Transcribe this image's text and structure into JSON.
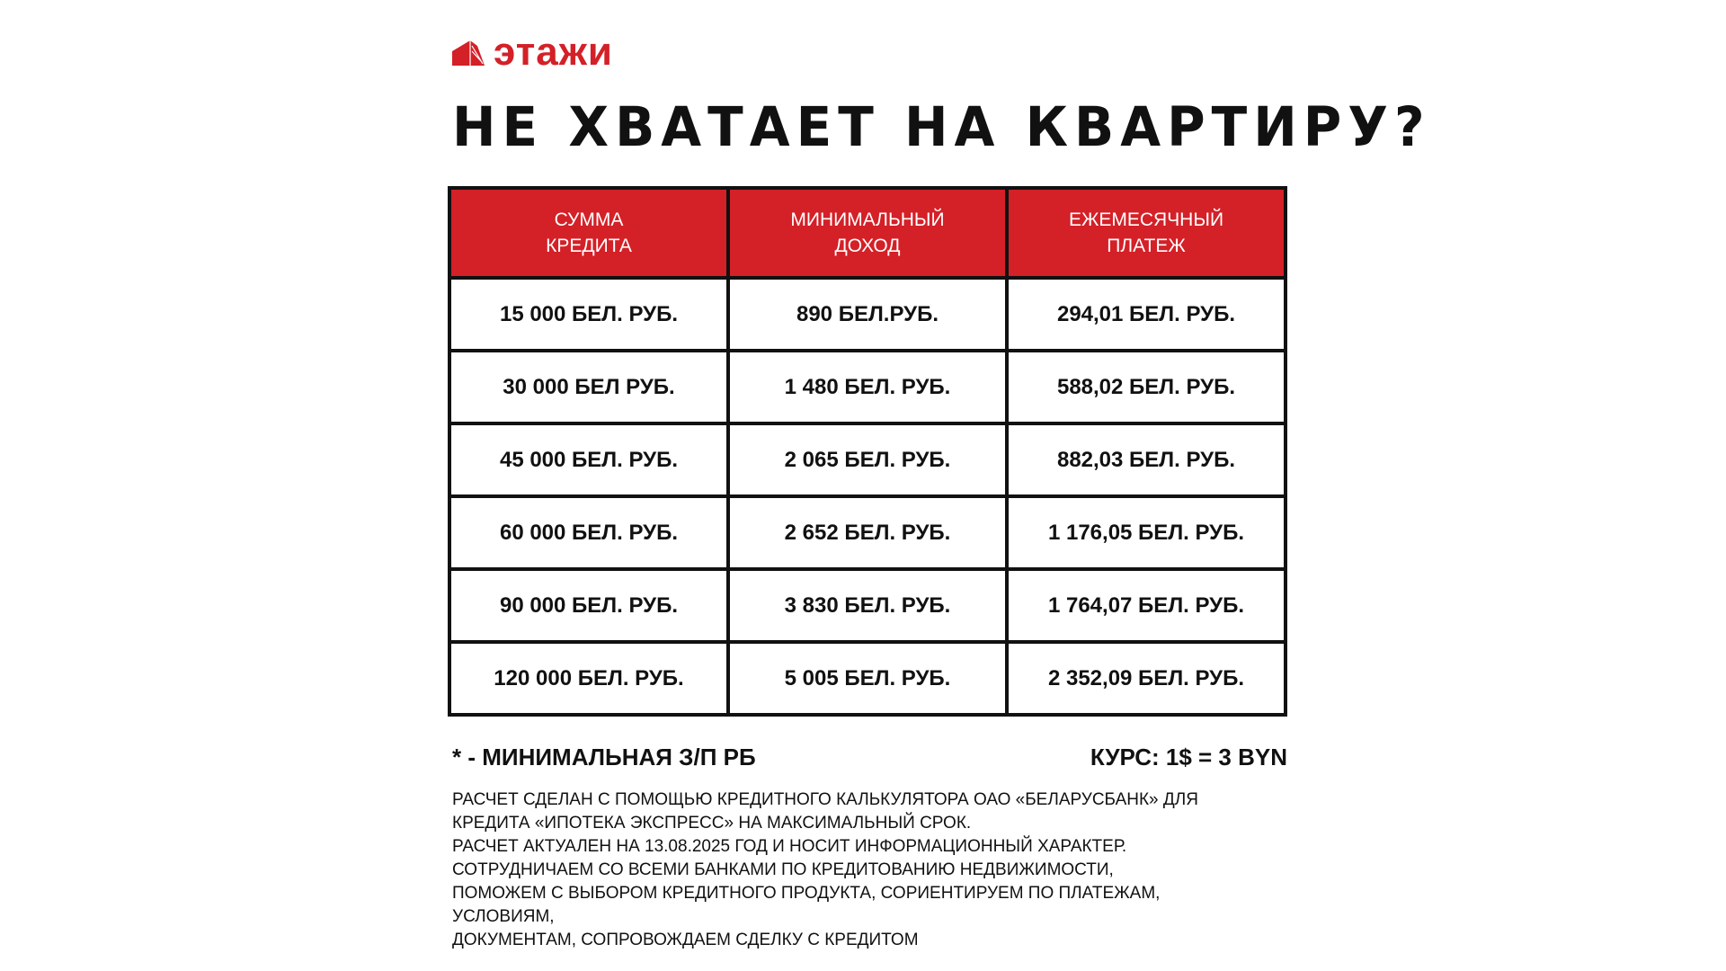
{
  "brand": {
    "name": "этажи",
    "color": "#d42027"
  },
  "title": "НЕ ХВАТАЕТ НА КВАРТИРУ?",
  "table": {
    "headers": [
      "СУММА\nКРЕДИТА",
      "МИНИМАЛЬНЫЙ\nДОХОД",
      "ЕЖЕМЕСЯЧНЫЙ\nПЛАТЕЖ"
    ],
    "rows": [
      [
        "15 000 БЕЛ. РУБ.",
        "890 БЕЛ.РУБ.",
        "294,01 БЕЛ. РУБ."
      ],
      [
        "30 000 БЕЛ РУБ.",
        "1 480 БЕЛ. РУБ.",
        "588,02 БЕЛ. РУБ."
      ],
      [
        "45 000 БЕЛ. РУБ.",
        "2 065 БЕЛ. РУБ.",
        "882,03 БЕЛ. РУБ."
      ],
      [
        "60 000 БЕЛ. РУБ.",
        "2 652 БЕЛ. РУБ.",
        "1 176,05 БЕЛ. РУБ."
      ],
      [
        "90 000 БЕЛ. РУБ.",
        "3 830 БЕЛ. РУБ.",
        "1 764,07 БЕЛ. РУБ."
      ],
      [
        "120 000 БЕЛ. РУБ.",
        "5 005 БЕЛ. РУБ.",
        "2 352,09 БЕЛ. РУБ."
      ]
    ]
  },
  "footnote": {
    "left": "* - МИНИМАЛЬНАЯ З/П РБ",
    "right": "КУРС: 1$ = 3 BYN"
  },
  "disclaimer": [
    "РАСЧЕТ СДЕЛАН С ПОМОЩЬЮ КРЕДИТНОГО КАЛЬКУЛЯТОРА ОАО «БЕЛАРУСБАНК» ДЛЯ",
    "КРЕДИТА «ИПОТЕКА ЭКСПРЕСС» НА МАКСИМАЛЬНЫЙ СРОК.",
    "РАСЧЕТ АКТУАЛЕН НА 13.08.2025 ГОД И НОСИТ ИНФОРМАЦИОННЫЙ ХАРАКТЕР.",
    "СОТРУДНИЧАЕМ СО ВСЕМИ БАНКАМИ ПО КРЕДИТОВАНИЮ НЕДВИЖИМОСТИ,",
    "ПОМОЖЕМ С ВЫБОРОМ КРЕДИТНОГО ПРОДУКТА, СОРИЕНТИРУЕМ ПО ПЛАТЕЖАМ,",
    "УСЛОВИЯМ,",
    "ДОКУМЕНТАМ, СОПРОВОЖДАЕМ СДЕЛКУ С КРЕДИТОМ"
  ]
}
